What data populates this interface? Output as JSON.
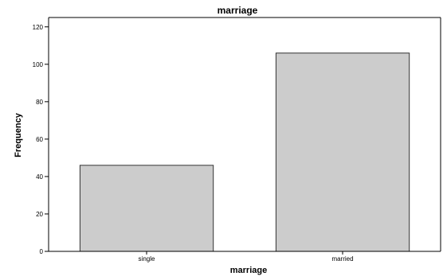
{
  "chart_data": {
    "type": "bar",
    "title": "marriage",
    "xlabel": "marriage",
    "ylabel": "Frequency",
    "categories": [
      "single",
      "married"
    ],
    "values": [
      46,
      106
    ],
    "ylim": [
      0,
      125
    ],
    "yticks": [
      0,
      20,
      40,
      60,
      80,
      100,
      120
    ],
    "grid": false,
    "legend": "none",
    "colors": {
      "bar_fill": "#cccccc",
      "bar_stroke": "#333333",
      "axis": "#000000",
      "background": "#ffffff"
    }
  }
}
